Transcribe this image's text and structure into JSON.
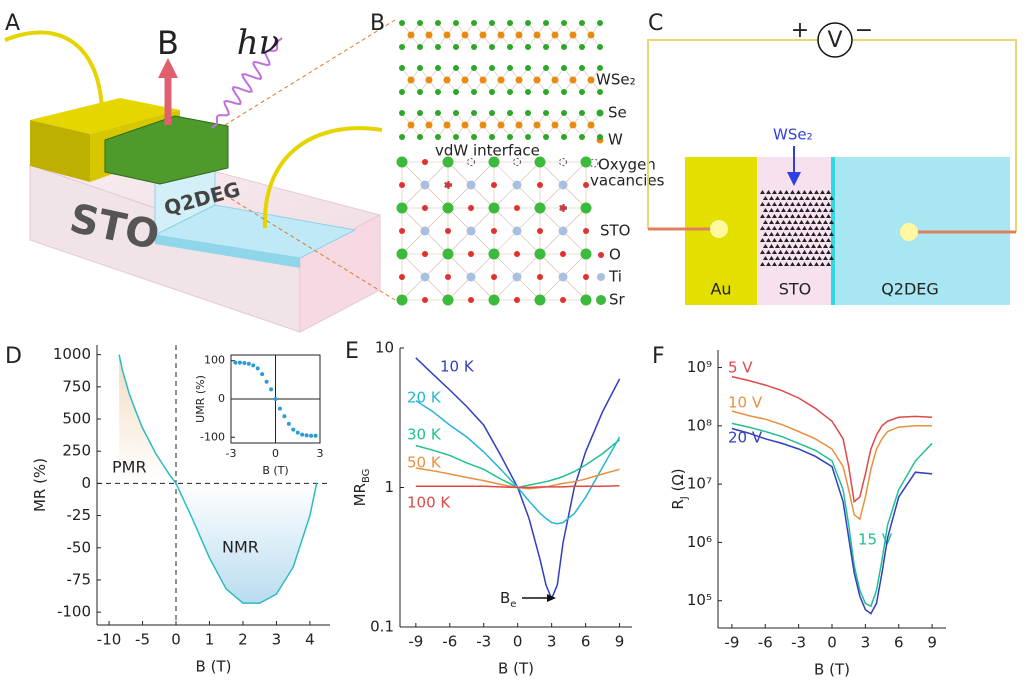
{
  "panels": {
    "A": {
      "letter": "A",
      "field": "B",
      "light": "hν",
      "substrate": "STO",
      "gas": "Q2DEG"
    },
    "B": {
      "letter": "B",
      "layer": "WSe₂",
      "se": "Se",
      "w": "W",
      "interface": "vdW interface",
      "vacancy_1": "Oxygen",
      "vacancy_2": "vacancies",
      "substrate": "STO",
      "o": "O",
      "ti": "Ti",
      "sr": "Sr"
    },
    "C": {
      "letter": "C",
      "plus": "+",
      "meter": "V",
      "minus": "−",
      "flake": "WSe₂",
      "left": "Au",
      "middle": "STO",
      "right": "Q2DEG"
    }
  },
  "chart_data": [
    {
      "panel": "D",
      "type": "line",
      "x_label": "B (T)",
      "y_label": "MR (%)",
      "xscale": "piecewise",
      "yscale": "piecewise",
      "xlim": [
        -11.8,
        4.6
      ],
      "ylim": [
        -110,
        1075
      ],
      "xticks": [
        -10,
        -5,
        0,
        1,
        2,
        3,
        4
      ],
      "yticks": [
        1000,
        750,
        500,
        250,
        0,
        -25,
        -50,
        -75,
        -100
      ],
      "x": [
        -8.5,
        -8,
        -7,
        -6,
        -5,
        -4,
        -3,
        -2,
        -1,
        0,
        0.5,
        1,
        1.5,
        2,
        2.5,
        3,
        3.5,
        4,
        4.2
      ],
      "values": [
        1000,
        880,
        700,
        560,
        430,
        330,
        230,
        150,
        70,
        0,
        -28,
        -58,
        -82,
        -93,
        -93,
        -86,
        -65,
        -25,
        0
      ],
      "color": "#2bbcc0",
      "area_colors": [
        "#f3dcc0",
        "#b9dcf0"
      ],
      "annotations": [
        "PMR",
        "NMR"
      ]
    },
    {
      "type": "scatter",
      "x_label": "B (T)",
      "y_label": "UMR (%)",
      "xlim": [
        -3,
        3
      ],
      "ylim": [
        -115,
        115
      ],
      "xticks": [
        -3,
        0,
        3
      ],
      "yticks": [
        100,
        0,
        -100
      ],
      "x": [
        -2.7,
        -2.4,
        -2.1,
        -1.8,
        -1.5,
        -1.2,
        -0.9,
        -0.6,
        -0.3,
        0,
        0.3,
        0.6,
        0.9,
        1.2,
        1.5,
        1.8,
        2.1,
        2.4,
        2.7
      ],
      "values": [
        95,
        95,
        94,
        92,
        88,
        80,
        65,
        45,
        25,
        0,
        -25,
        -45,
        -65,
        -80,
        -88,
        -93,
        -95,
        -96,
        -96
      ],
      "color": "#2a9ad8"
    },
    {
      "panel": "E",
      "type": "line",
      "x_label": "B (T)",
      "y_label": "MR",
      "y_label_sub": "BG",
      "yscale": "log",
      "xlim": [
        -10.4,
        10.1
      ],
      "ylim": [
        0.1,
        10
      ],
      "xticks": [
        -9,
        -6,
        -3,
        0,
        3,
        6,
        9
      ],
      "yticks": [
        0.1,
        1,
        10
      ],
      "annotation": "B",
      "annotation_sub": "e",
      "x": [
        -9,
        -7.5,
        -6,
        -4.5,
        -3,
        -1.5,
        0,
        1,
        2,
        2.5,
        3,
        3.5,
        4,
        5,
        6,
        7.5,
        9
      ],
      "series": [
        {
          "name": "10 K",
          "color": "#2f3fbf",
          "values": [
            8.5,
            6.5,
            5,
            3.8,
            2.8,
            1.7,
            1,
            0.6,
            0.3,
            0.2,
            0.16,
            0.2,
            0.4,
            1.0,
            1.8,
            3.5,
            6
          ]
        },
        {
          "name": "20 K",
          "color": "#26b5d6",
          "values": [
            4.2,
            3.5,
            2.8,
            2.3,
            1.8,
            1.35,
            1,
            0.8,
            0.65,
            0.6,
            0.56,
            0.55,
            0.56,
            0.65,
            0.85,
            1.4,
            2.3
          ]
        },
        {
          "name": "30 K",
          "color": "#20c090",
          "values": [
            2.0,
            1.85,
            1.7,
            1.5,
            1.35,
            1.15,
            1,
            1.04,
            1.08,
            1.1,
            1.13,
            1.16,
            1.2,
            1.3,
            1.45,
            1.75,
            2.2
          ]
        },
        {
          "name": "50 K",
          "color": "#e89040",
          "values": [
            1.38,
            1.32,
            1.25,
            1.18,
            1.12,
            1.05,
            1,
            0.98,
            1.0,
            1.01,
            1.03,
            1.05,
            1.07,
            1.1,
            1.15,
            1.25,
            1.35
          ]
        },
        {
          "name": "100 K",
          "color": "#e04848",
          "values": [
            1.02,
            1.02,
            1.02,
            1.02,
            1.02,
            1.01,
            1,
            1,
            1.01,
            1.01,
            1.01,
            1.01,
            1.01,
            1.02,
            1.02,
            1.02,
            1.03
          ]
        }
      ]
    },
    {
      "panel": "F",
      "type": "line",
      "x_label": "B (T)",
      "y_label": "R",
      "y_label_sub": "J",
      "y_label_unit": " (Ω)",
      "yscale": "log",
      "xlim": [
        -10.25,
        10.25
      ],
      "ylim": [
        34000,
        2000000000
      ],
      "xticks": [
        -9,
        -6,
        -3,
        0,
        3,
        6,
        9
      ],
      "yticks": [
        {
          "value": 100000,
          "label": "10⁵"
        },
        {
          "value": 1000000,
          "label": "10⁶"
        },
        {
          "value": 10000000,
          "label": "10⁷"
        },
        {
          "value": 100000000,
          "label": "10⁸"
        },
        {
          "value": 1000000000,
          "label": "10⁹"
        }
      ],
      "x": [
        -9,
        -7.5,
        -6,
        -4.5,
        -3,
        -1.5,
        0,
        1,
        1.5,
        2,
        2.5,
        3,
        3.5,
        4,
        4.5,
        5,
        6,
        7.5,
        9
      ],
      "series": [
        {
          "name": "5 V",
          "color": "#e04848",
          "values": [
            700000000,
            600000000,
            500000000,
            400000000,
            300000000,
            200000000,
            120000000,
            60000000,
            20000000,
            5000000,
            6000000,
            15000000,
            40000000,
            70000000,
            100000000,
            120000000,
            140000000,
            145000000,
            140000000
          ]
        },
        {
          "name": "10 V",
          "color": "#e89040",
          "values": [
            180000000,
            150000000,
            130000000,
            105000000,
            80000000,
            60000000,
            40000000,
            20000000,
            8000000,
            3000000,
            2500000,
            6000000,
            18000000,
            40000000,
            60000000,
            80000000,
            95000000,
            100000000,
            100000000
          ]
        },
        {
          "name": "15 V",
          "color": "#20c090",
          "values": [
            110000000,
            95000000,
            80000000,
            65000000,
            50000000,
            38000000,
            25000000,
            8000000,
            2000000,
            400000,
            150000,
            90000,
            80000,
            150000,
            500000,
            2000000,
            8000000,
            25000000,
            50000000
          ]
        },
        {
          "name": "20 V",
          "color": "#2f3fbf",
          "values": [
            90000000,
            75000000,
            60000000,
            50000000,
            40000000,
            30000000,
            20000000,
            5000000,
            1200000,
            300000,
            120000,
            70000,
            60000,
            90000,
            300000,
            1200000,
            6000000,
            16000000,
            15000000
          ]
        }
      ]
    }
  ]
}
